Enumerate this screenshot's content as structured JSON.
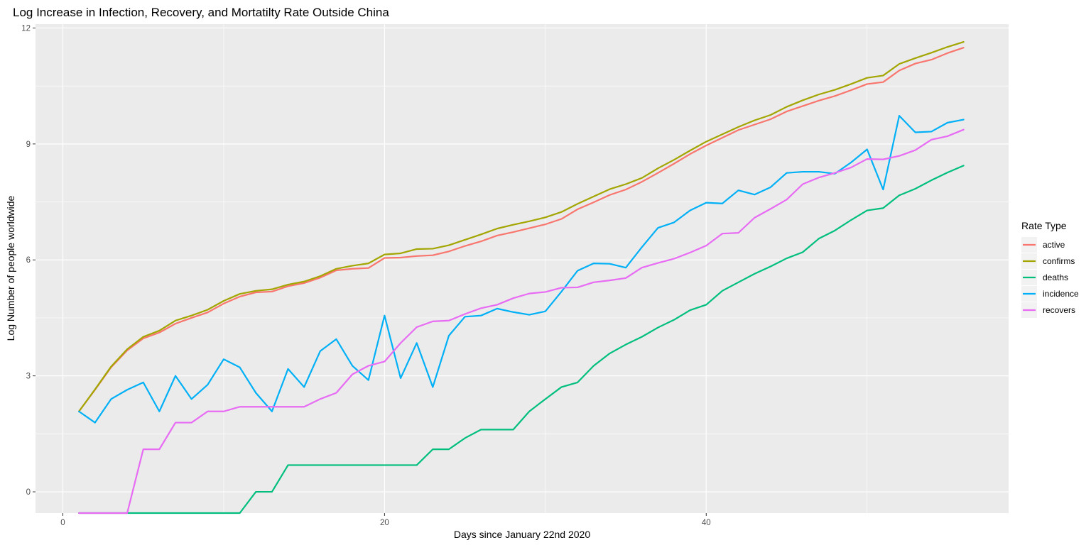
{
  "chart_data": {
    "type": "line",
    "title": "Log Increase in Infection, Recovery, and Mortatilty Rate Outside China",
    "xlabel": "Days since January 22nd 2020",
    "ylabel": "Log Number of people worldwide",
    "xlim": [
      -1.7,
      58.8
    ],
    "ylim": [
      -0.55,
      12.1
    ],
    "x_ticks": [
      0,
      20,
      40
    ],
    "x_tick_labels": [
      "0",
      "20",
      "40"
    ],
    "y_ticks": [
      0,
      3,
      6,
      9,
      12
    ],
    "y_tick_labels": [
      "0",
      "3",
      "6",
      "9",
      "12"
    ],
    "grid": true,
    "legend": {
      "title": "Rate Type",
      "position": "right"
    },
    "x": [
      1,
      2,
      3,
      4,
      5,
      6,
      7,
      8,
      9,
      10,
      11,
      12,
      13,
      14,
      15,
      16,
      17,
      18,
      19,
      20,
      21,
      22,
      23,
      24,
      25,
      26,
      27,
      28,
      29,
      30,
      31,
      32,
      33,
      34,
      35,
      36,
      37,
      38,
      39,
      40,
      41,
      42,
      43,
      44,
      45,
      46,
      47,
      48,
      49,
      50,
      51,
      52,
      53,
      54,
      55,
      56
    ],
    "series": [
      {
        "name": "active",
        "color": "#F8766D",
        "values": [
          2.08,
          2.64,
          3.22,
          3.66,
          3.97,
          4.12,
          4.35,
          4.5,
          4.64,
          4.87,
          5.05,
          5.16,
          5.18,
          5.32,
          5.4,
          5.54,
          5.73,
          5.77,
          5.79,
          6.05,
          6.06,
          6.1,
          6.12,
          6.22,
          6.36,
          6.48,
          6.63,
          6.72,
          6.82,
          6.92,
          7.06,
          7.31,
          7.49,
          7.68,
          7.82,
          8.02,
          8.25,
          8.49,
          8.74,
          8.96,
          9.16,
          9.36,
          9.5,
          9.64,
          9.84,
          9.98,
          10.12,
          10.24,
          10.39,
          10.55,
          10.6,
          10.9,
          11.08,
          11.18,
          11.35,
          11.49
        ]
      },
      {
        "name": "confirms",
        "color": "#A3A500",
        "values": [
          2.08,
          2.65,
          3.24,
          3.69,
          4.01,
          4.17,
          4.43,
          4.56,
          4.71,
          4.94,
          5.12,
          5.2,
          5.24,
          5.36,
          5.44,
          5.58,
          5.77,
          5.85,
          5.91,
          6.14,
          6.17,
          6.28,
          6.29,
          6.38,
          6.52,
          6.66,
          6.81,
          6.91,
          7.0,
          7.1,
          7.24,
          7.45,
          7.64,
          7.83,
          7.96,
          8.12,
          8.37,
          8.59,
          8.83,
          9.06,
          9.25,
          9.44,
          9.61,
          9.75,
          9.96,
          10.13,
          10.28,
          10.4,
          10.55,
          10.71,
          10.77,
          11.07,
          11.22,
          11.36,
          11.51,
          11.64
        ]
      },
      {
        "name": "deaths",
        "color": "#00BF7D",
        "values": [
          -0.55,
          -0.55,
          -0.55,
          -0.55,
          -0.55,
          -0.55,
          -0.55,
          -0.55,
          -0.55,
          -0.55,
          -0.55,
          0.0,
          0.0,
          0.69,
          0.69,
          0.69,
          0.69,
          0.69,
          0.69,
          0.69,
          0.69,
          0.69,
          1.1,
          1.1,
          1.39,
          1.61,
          1.61,
          1.61,
          2.08,
          2.4,
          2.71,
          2.83,
          3.26,
          3.58,
          3.81,
          4.01,
          4.25,
          4.45,
          4.7,
          4.84,
          5.2,
          5.42,
          5.64,
          5.83,
          6.04,
          6.2,
          6.55,
          6.76,
          7.03,
          7.28,
          7.34,
          7.67,
          7.84,
          8.06,
          8.26,
          8.44
        ]
      },
      {
        "name": "incidence",
        "color": "#00B0F6",
        "values": [
          2.08,
          1.79,
          2.4,
          2.64,
          2.83,
          2.08,
          3.0,
          2.4,
          2.77,
          3.43,
          3.22,
          2.56,
          2.08,
          3.18,
          2.71,
          3.64,
          3.95,
          3.26,
          2.89,
          4.56,
          2.94,
          3.85,
          2.71,
          4.04,
          4.53,
          4.56,
          4.74,
          4.65,
          4.58,
          4.67,
          5.18,
          5.72,
          5.91,
          5.9,
          5.8,
          6.33,
          6.83,
          6.97,
          7.28,
          7.48,
          7.46,
          7.8,
          7.69,
          7.88,
          8.25,
          8.28,
          8.28,
          8.23,
          8.52,
          8.86,
          7.82,
          9.73,
          9.3,
          9.32,
          9.55,
          9.63
        ]
      },
      {
        "name": "recovers",
        "color": "#E76BF3",
        "values": [
          -0.55,
          -0.55,
          -0.55,
          -0.55,
          1.1,
          1.1,
          1.79,
          1.79,
          2.08,
          2.08,
          2.2,
          2.2,
          2.2,
          2.2,
          2.2,
          2.4,
          2.56,
          3.04,
          3.26,
          3.37,
          3.85,
          4.26,
          4.41,
          4.43,
          4.6,
          4.75,
          4.84,
          5.01,
          5.13,
          5.17,
          5.28,
          5.29,
          5.42,
          5.47,
          5.53,
          5.8,
          5.92,
          6.03,
          6.19,
          6.37,
          6.68,
          6.7,
          7.09,
          7.32,
          7.56,
          7.96,
          8.13,
          8.25,
          8.39,
          8.61,
          8.6,
          8.69,
          8.84,
          9.11,
          9.2,
          9.37
        ]
      }
    ]
  }
}
